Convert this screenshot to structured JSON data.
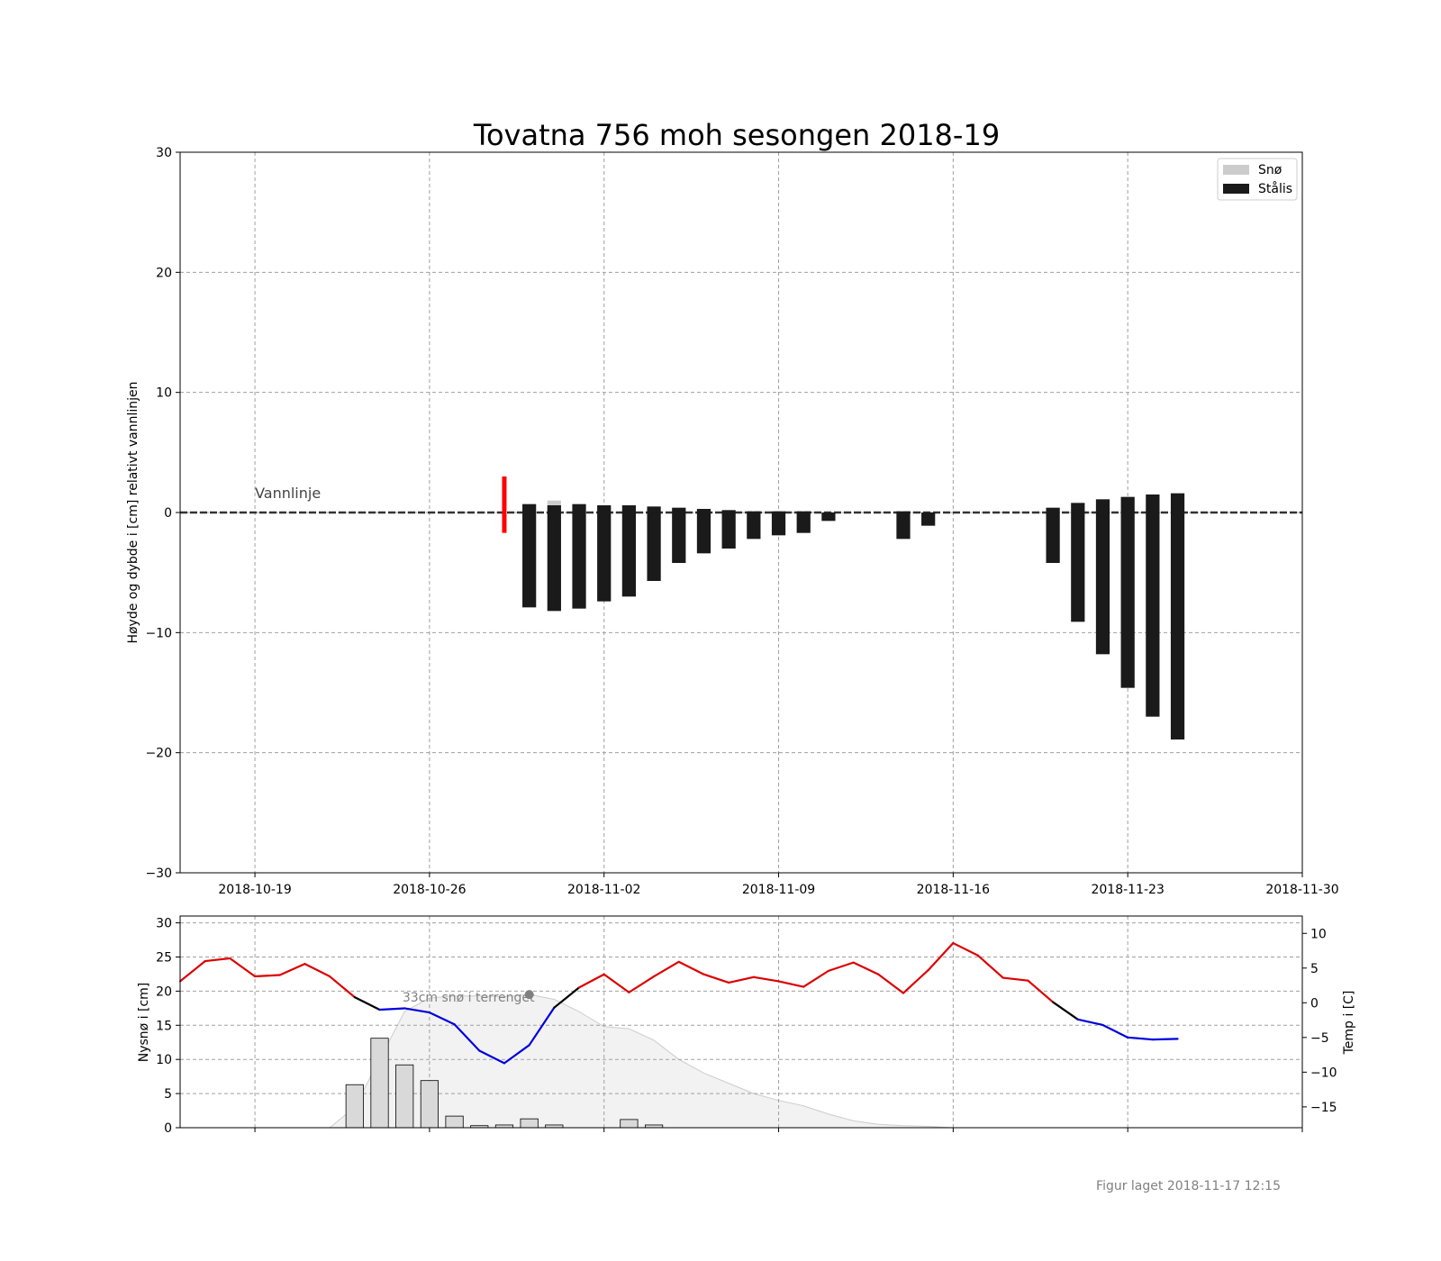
{
  "figure": {
    "title": "Tovatna 756 moh sesongen 2018-19",
    "footer": "Figur laget 2018-11-17 12:15"
  },
  "chart_data": [
    {
      "type": "bar",
      "title": "Tovatna 756 moh sesongen 2018-19",
      "ylabel": "Høyde og dybde i [cm] relativt vannlinjen",
      "xlabel": "",
      "xlim": [
        "2018-10-16",
        "2018-11-30"
      ],
      "ylim": [
        -30,
        30
      ],
      "x_ticks": [
        "2018-10-19",
        "2018-10-26",
        "2018-11-02",
        "2018-11-09",
        "2018-11-16",
        "2018-11-23",
        "2018-11-30"
      ],
      "y_ticks": [
        -30,
        -20,
        -10,
        0,
        10,
        20,
        30
      ],
      "grid": true,
      "legend": {
        "placement": "upper right",
        "entries": [
          {
            "name": "Snø",
            "color": "#cccccc"
          },
          {
            "name": "Stålis",
            "color": "#1a1a1a"
          }
        ]
      },
      "annotations": [
        {
          "text": "Vannlinje",
          "x": "2018-10-19",
          "y": 1.2
        }
      ],
      "waterline": {
        "y": 0,
        "color": "#333333"
      },
      "marker": {
        "date": "2018-10-29",
        "y_top": 3,
        "y_bottom": -1.7,
        "color": "#ff0000"
      },
      "series": [
        {
          "name": "Stålis",
          "color": "#1a1a1a",
          "points": [
            {
              "date": "2018-10-30",
              "top": 0.7,
              "bottom": -7.9
            },
            {
              "date": "2018-10-31",
              "top": 0.6,
              "bottom": -8.2
            },
            {
              "date": "2018-11-01",
              "top": 0.7,
              "bottom": -8.0
            },
            {
              "date": "2018-11-02",
              "top": 0.6,
              "bottom": -7.4
            },
            {
              "date": "2018-11-03",
              "top": 0.6,
              "bottom": -7.0
            },
            {
              "date": "2018-11-04",
              "top": 0.5,
              "bottom": -5.7
            },
            {
              "date": "2018-11-05",
              "top": 0.4,
              "bottom": -4.2
            },
            {
              "date": "2018-11-06",
              "top": 0.3,
              "bottom": -3.4
            },
            {
              "date": "2018-11-07",
              "top": 0.2,
              "bottom": -3.0
            },
            {
              "date": "2018-11-08",
              "top": 0.1,
              "bottom": -2.2
            },
            {
              "date": "2018-11-09",
              "top": 0.1,
              "bottom": -1.9
            },
            {
              "date": "2018-11-10",
              "top": 0.1,
              "bottom": -1.7
            },
            {
              "date": "2018-11-11",
              "top": 0.0,
              "bottom": -0.7
            },
            {
              "date": "2018-11-14",
              "top": 0.1,
              "bottom": -2.2
            },
            {
              "date": "2018-11-15",
              "top": 0.0,
              "bottom": -1.1
            },
            {
              "date": "2018-11-20",
              "top": 0.4,
              "bottom": -4.2
            },
            {
              "date": "2018-11-21",
              "top": 0.8,
              "bottom": -9.1
            },
            {
              "date": "2018-11-22",
              "top": 1.1,
              "bottom": -11.8
            },
            {
              "date": "2018-11-23",
              "top": 1.3,
              "bottom": -14.6
            },
            {
              "date": "2018-11-24",
              "top": 1.5,
              "bottom": -17.0
            },
            {
              "date": "2018-11-25",
              "top": 1.6,
              "bottom": -18.9
            }
          ]
        },
        {
          "name": "Snø",
          "color": "#cccccc",
          "points": [
            {
              "date": "2018-10-31",
              "top": 1.0,
              "bottom": 0.6
            }
          ]
        }
      ]
    },
    {
      "type": "bar",
      "ylabel": "Nysnø i [cm]",
      "y2label": "Temp i [C]",
      "xlim": [
        "2018-10-16",
        "2018-11-30"
      ],
      "ylim": [
        0,
        31
      ],
      "y2lim": [
        -18,
        12.5
      ],
      "y_ticks": [
        0,
        5,
        10,
        15,
        20,
        25,
        30
      ],
      "y2_ticks": [
        -15,
        -10,
        -5,
        0,
        5,
        10
      ],
      "grid": true,
      "annotations": [
        {
          "text": "33cm snø i terrenget",
          "x": "2018-10-26",
          "y": 19
        }
      ],
      "snow_depth_marker": {
        "date": "2018-10-30",
        "y": 19.5,
        "color": "#808080"
      },
      "snow_depth_area": {
        "name": "Snødybde",
        "color": "#f2f2f2",
        "points": [
          [
            "2018-10-22",
            0
          ],
          [
            "2018-10-23",
            3
          ],
          [
            "2018-10-24",
            10
          ],
          [
            "2018-10-25",
            17
          ],
          [
            "2018-10-26",
            19
          ],
          [
            "2018-10-27",
            19.3
          ],
          [
            "2018-10-28",
            19.3
          ],
          [
            "2018-10-29",
            19.2
          ],
          [
            "2018-10-30",
            19.5
          ],
          [
            "2018-10-31",
            18.8
          ],
          [
            "2018-11-01",
            17
          ],
          [
            "2018-11-02",
            14.8
          ],
          [
            "2018-11-03",
            14.5
          ],
          [
            "2018-11-04",
            12.8
          ],
          [
            "2018-11-05",
            10
          ],
          [
            "2018-11-06",
            8
          ],
          [
            "2018-11-07",
            6.5
          ],
          [
            "2018-11-08",
            5
          ],
          [
            "2018-11-09",
            4
          ],
          [
            "2018-11-10",
            3.2
          ],
          [
            "2018-11-11",
            2
          ],
          [
            "2018-11-12",
            1
          ],
          [
            "2018-11-13",
            0.5
          ],
          [
            "2018-11-14",
            0.3
          ],
          [
            "2018-11-15",
            0.2
          ],
          [
            "2018-11-16",
            0
          ]
        ]
      },
      "series": [
        {
          "name": "Nysnø",
          "color": "#d9d9d9",
          "points": [
            [
              "2018-10-23",
              6.3
            ],
            [
              "2018-10-24",
              13.1
            ],
            [
              "2018-10-25",
              9.2
            ],
            [
              "2018-10-26",
              6.9
            ],
            [
              "2018-10-27",
              1.7
            ],
            [
              "2018-10-28",
              0.3
            ],
            [
              "2018-10-29",
              0.4
            ],
            [
              "2018-10-30",
              1.3
            ],
            [
              "2018-10-31",
              0.4
            ],
            [
              "2018-11-03",
              1.2
            ],
            [
              "2018-11-04",
              0.4
            ]
          ]
        },
        {
          "name": "Temp",
          "axis": "right",
          "points": [
            [
              "2018-10-16",
              3.1
            ],
            [
              "2018-10-17",
              6.0
            ],
            [
              "2018-10-18",
              6.4
            ],
            [
              "2018-10-19",
              3.8
            ],
            [
              "2018-10-20",
              4.0
            ],
            [
              "2018-10-21",
              5.6
            ],
            [
              "2018-10-22",
              3.8
            ],
            [
              "2018-10-23",
              0.8
            ],
            [
              "2018-10-24",
              -1.0
            ],
            [
              "2018-10-25",
              -0.8
            ],
            [
              "2018-10-26",
              -1.4
            ],
            [
              "2018-10-27",
              -3.1
            ],
            [
              "2018-10-28",
              -6.9
            ],
            [
              "2018-10-29",
              -8.7
            ],
            [
              "2018-10-30",
              -6.1
            ],
            [
              "2018-10-31",
              -0.7
            ],
            [
              "2018-11-01",
              2.2
            ],
            [
              "2018-11-02",
              4.1
            ],
            [
              "2018-11-03",
              1.5
            ],
            [
              "2018-11-04",
              3.8
            ],
            [
              "2018-11-05",
              5.9
            ],
            [
              "2018-11-06",
              4.1
            ],
            [
              "2018-11-07",
              2.9
            ],
            [
              "2018-11-08",
              3.7
            ],
            [
              "2018-11-09",
              3.1
            ],
            [
              "2018-11-10",
              2.3
            ],
            [
              "2018-11-11",
              4.6
            ],
            [
              "2018-11-12",
              5.8
            ],
            [
              "2018-11-13",
              4.1
            ],
            [
              "2018-11-14",
              1.4
            ],
            [
              "2018-11-15",
              4.7
            ],
            [
              "2018-11-16",
              8.6
            ],
            [
              "2018-11-17",
              6.8
            ],
            [
              "2018-11-18",
              3.6
            ],
            [
              "2018-11-19",
              3.2
            ],
            [
              "2018-11-20",
              0.1
            ],
            [
              "2018-11-21",
              -2.4
            ],
            [
              "2018-11-22",
              -3.2
            ],
            [
              "2018-11-23",
              -5.0
            ],
            [
              "2018-11-24",
              -5.3
            ],
            [
              "2018-11-25",
              -5.2
            ]
          ]
        }
      ],
      "temp_colors": {
        "warm": "#dd0000",
        "cold": "#0000dd",
        "mixed": "#000000"
      }
    }
  ]
}
